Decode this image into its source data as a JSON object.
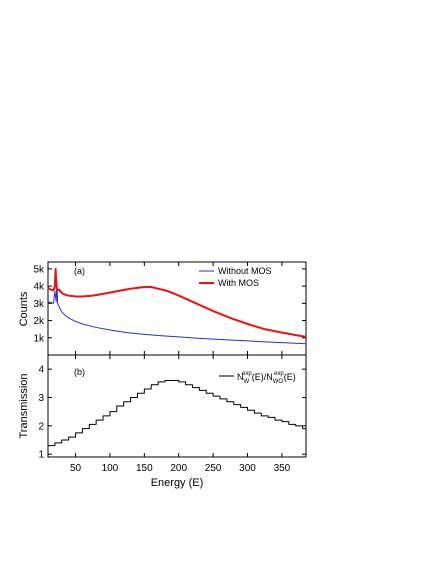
{
  "chart_data": {
    "type": "line",
    "xlabel": "Energy (E)",
    "xlim": [
      10,
      385
    ],
    "xticks": [
      50,
      100,
      150,
      200,
      250,
      300,
      350
    ],
    "xtick_labels": [
      "50",
      "100",
      "150",
      "200",
      "250",
      "300",
      "350"
    ],
    "panels": [
      {
        "id": "a",
        "tag": "(a)",
        "ylabel": "Counts",
        "ylim": [
          0,
          5400
        ],
        "yticks": [
          1000,
          2000,
          3000,
          4000,
          5000
        ],
        "ytick_labels": [
          "1k",
          "2k",
          "3k",
          "4k",
          "5k"
        ],
        "legend_position": "top-right",
        "series": [
          {
            "name": "Without MOS",
            "color": "#2b2bd6",
            "x": [
              10,
              14,
              18,
              20,
              22,
              23,
              24,
              25,
              26,
              28,
              30,
              35,
              40,
              50,
              60,
              80,
              100,
              125,
              150,
              175,
              200,
              225,
              250,
              275,
              300,
              325,
              350,
              385
            ],
            "y": [
              3100,
              3050,
              3000,
              3700,
              3100,
              4250,
              3000,
              2900,
              2800,
              2650,
              2500,
              2300,
              2150,
              1950,
              1800,
              1600,
              1450,
              1300,
              1200,
              1120,
              1050,
              980,
              920,
              870,
              820,
              760,
              720,
              650
            ]
          },
          {
            "name": "With MOS",
            "color": "#ee1111",
            "x": [
              10,
              14,
              18,
              20,
              21,
              22,
              23,
              24,
              26,
              28,
              30,
              35,
              40,
              50,
              60,
              75,
              90,
              110,
              130,
              150,
              160,
              170,
              185,
              200,
              225,
              250,
              275,
              300,
              325,
              350,
              385
            ],
            "y": [
              3900,
              3800,
              3750,
              4000,
              5000,
              4100,
              3800,
              3750,
              3800,
              3700,
              3600,
              3500,
              3450,
              3400,
              3400,
              3450,
              3550,
              3700,
              3850,
              3950,
              3950,
              3850,
              3700,
              3450,
              3000,
              2550,
              2150,
              1800,
              1500,
              1300,
              1050
            ]
          }
        ]
      },
      {
        "id": "b",
        "tag": "(b)",
        "ylabel": "Transmission",
        "ylim": [
          0.9,
          4.5
        ],
        "yticks": [
          1,
          2,
          3,
          4
        ],
        "ytick_labels": [
          "1",
          "2",
          "3",
          "4"
        ],
        "legend_position": "top-right",
        "series": [
          {
            "name": "N_W^exp(E)/N_WO^exp(E)",
            "legend_parts": {
              "n1": "N",
              "sub1": "W",
              "sup1": "exp",
              "mid": "(E)/N",
              "sub2": "WO",
              "sup2": "exp",
              "end": "(E)"
            },
            "color": "#000000",
            "step": true,
            "x": [
              10,
              20,
              30,
              40,
              50,
              60,
              70,
              80,
              90,
              100,
              110,
              120,
              130,
              140,
              150,
              160,
              170,
              180,
              190,
              200,
              210,
              220,
              230,
              240,
              250,
              260,
              270,
              280,
              290,
              300,
              310,
              320,
              330,
              340,
              350,
              360,
              370,
              380,
              385
            ],
            "y": [
              1.3,
              1.4,
              1.5,
              1.6,
              1.75,
              1.9,
              2.05,
              2.2,
              2.35,
              2.5,
              2.7,
              2.85,
              3.0,
              3.15,
              3.3,
              3.45,
              3.55,
              3.6,
              3.6,
              3.55,
              3.45,
              3.35,
              3.25,
              3.15,
              3.05,
              2.95,
              2.85,
              2.75,
              2.65,
              2.55,
              2.45,
              2.35,
              2.3,
              2.2,
              2.15,
              2.05,
              2.0,
              1.9,
              1.5
            ]
          }
        ]
      }
    ]
  }
}
